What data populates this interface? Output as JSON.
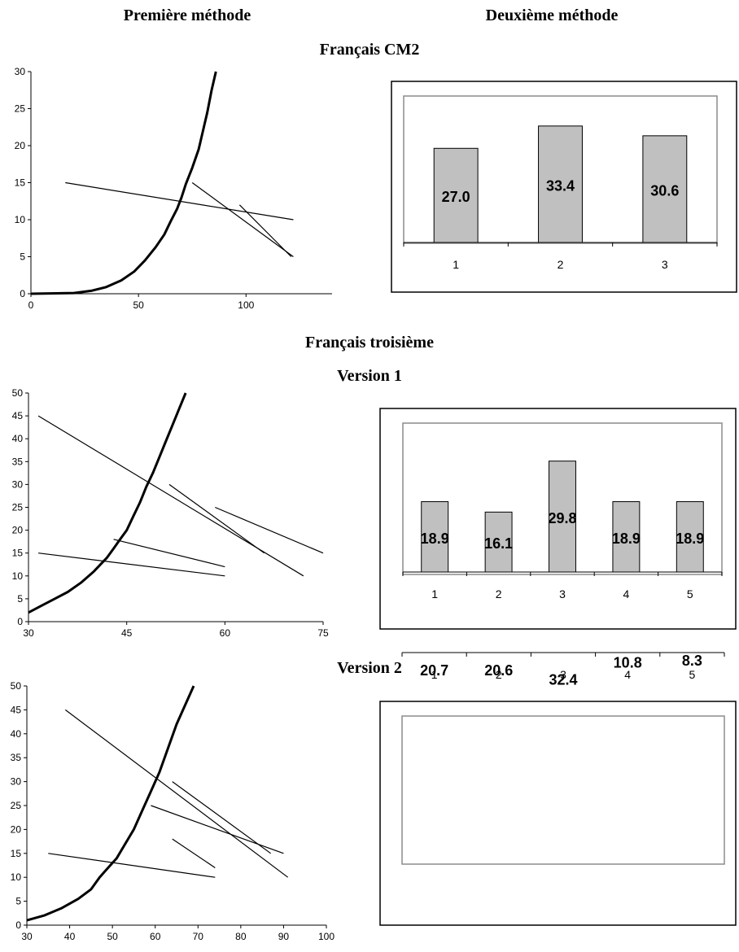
{
  "headers": {
    "col_left": "Première méthode",
    "col_right": "Deuxième méthode",
    "section1": "Français CM2",
    "section2": "Français troisième",
    "version1": "Version 1",
    "version2": "Version 2"
  },
  "chart_data": [
    {
      "id": "cm2-curve",
      "type": "line",
      "title": "",
      "xlim": [
        0,
        140
      ],
      "ylim": [
        0,
        30
      ],
      "xticks": [
        0,
        50,
        100
      ],
      "yticks": [
        0,
        5,
        10,
        15,
        20,
        25,
        30
      ],
      "grid": false,
      "curve": {
        "x": [
          0,
          20,
          28,
          35,
          42,
          48,
          53,
          58,
          62,
          65,
          68,
          70,
          72,
          75,
          78,
          80,
          82,
          84,
          86
        ],
        "y": [
          0,
          0.1,
          0.4,
          0.9,
          1.8,
          3.0,
          4.5,
          6.3,
          8.0,
          9.8,
          11.5,
          13,
          14.8,
          17,
          19.5,
          22,
          24.5,
          27.5,
          30
        ]
      },
      "segments": [
        {
          "x": [
            16,
            122
          ],
          "y": [
            15,
            10
          ]
        },
        {
          "x": [
            75,
            122
          ],
          "y": [
            15,
            5
          ]
        },
        {
          "x": [
            97,
            121
          ],
          "y": [
            12,
            5
          ]
        }
      ]
    },
    {
      "id": "cm2-bars",
      "type": "bar",
      "title": "",
      "categories": [
        "1",
        "2",
        "3"
      ],
      "values": [
        27.0,
        33.4,
        30.6
      ],
      "labels": [
        "27.0",
        "33.4",
        "30.6"
      ],
      "ylim": [
        0,
        42
      ]
    },
    {
      "id": "v1-curve",
      "type": "line",
      "title": "",
      "xlim": [
        30,
        75
      ],
      "ylim": [
        0,
        50
      ],
      "xticks": [
        30,
        45,
        60,
        75
      ],
      "yticks": [
        0,
        5,
        10,
        15,
        20,
        25,
        30,
        35,
        40,
        45,
        50
      ],
      "grid": false,
      "curve": {
        "x": [
          30,
          32,
          34,
          36,
          38,
          40,
          42,
          43,
          44,
          45,
          46,
          47,
          48,
          49,
          50,
          51,
          52,
          53,
          54
        ],
        "y": [
          2,
          3.5,
          5,
          6.5,
          8.5,
          11,
          14,
          16,
          18,
          20,
          23,
          26,
          29.5,
          32.5,
          36,
          39.5,
          43,
          46.5,
          50
        ]
      },
      "segments": [
        {
          "x": [
            31.5,
            72
          ],
          "y": [
            45,
            10
          ]
        },
        {
          "x": [
            51.5,
            66
          ],
          "y": [
            30,
            15
          ]
        },
        {
          "x": [
            58.5,
            75
          ],
          "y": [
            25,
            15
          ]
        },
        {
          "x": [
            43,
            60
          ],
          "y": [
            18,
            12
          ]
        },
        {
          "x": [
            31.5,
            60
          ],
          "y": [
            15,
            10
          ]
        }
      ]
    },
    {
      "id": "v1-bars",
      "type": "bar",
      "title": "",
      "categories": [
        "1",
        "2",
        "3",
        "4",
        "5"
      ],
      "values": [
        18.9,
        16.1,
        29.8,
        18.9,
        18.9
      ],
      "labels": [
        "18.9",
        "16.1",
        "29.8",
        "18.9",
        "18.9"
      ],
      "ylim": [
        0,
        40
      ]
    },
    {
      "id": "v2-curve",
      "type": "line",
      "title": "",
      "xlim": [
        30,
        100
      ],
      "ylim": [
        0,
        50
      ],
      "xticks": [
        30,
        40,
        50,
        60,
        70,
        80,
        90,
        100
      ],
      "yticks": [
        0,
        5,
        10,
        15,
        20,
        25,
        30,
        35,
        40,
        45,
        50
      ],
      "grid": false,
      "curve": {
        "x": [
          30,
          34,
          38,
          42,
          45,
          47,
          49,
          51,
          53,
          55,
          57,
          59,
          61,
          63,
          65,
          67,
          69
        ],
        "y": [
          1,
          2,
          3.5,
          5.5,
          7.5,
          10,
          12,
          14,
          17,
          20,
          24,
          28,
          32,
          37,
          42,
          46,
          50
        ]
      },
      "segments": [
        {
          "x": [
            39,
            91
          ],
          "y": [
            45,
            10
          ]
        },
        {
          "x": [
            64,
            87
          ],
          "y": [
            30,
            15
          ]
        },
        {
          "x": [
            59,
            90
          ],
          "y": [
            25,
            15
          ]
        },
        {
          "x": [
            64,
            74
          ],
          "y": [
            18,
            12
          ]
        },
        {
          "x": [
            35,
            74
          ],
          "y": [
            15,
            10
          ]
        }
      ]
    },
    {
      "id": "v2-bars",
      "type": "bar",
      "title": "",
      "categories": [
        "1",
        "2",
        "3",
        "4",
        "5"
      ],
      "values": [
        20.7,
        20.6,
        32.4,
        10.8,
        8.3
      ],
      "labels": [
        "20.7",
        "20.6",
        "32.4",
        "10.8",
        "8.3"
      ],
      "ylim": [
        0,
        40
      ]
    }
  ]
}
